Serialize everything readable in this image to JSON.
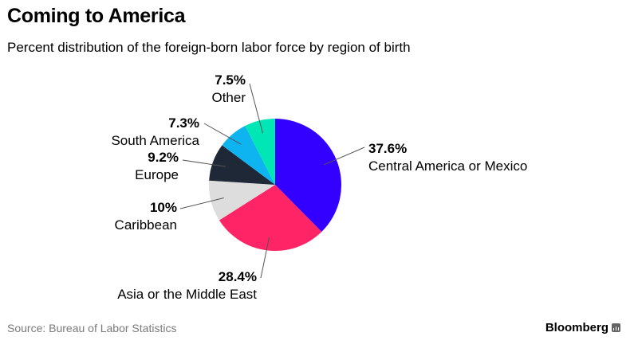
{
  "title": "Coming to America",
  "subtitle": "Percent distribution of the foreign-born labor force by region of birth",
  "source": "Source: Bureau of Labor Statistics",
  "brand": "Bloomberg",
  "brand_icon": "bloomberg-logo-icon",
  "chart_data": {
    "type": "pie",
    "title": "Coming to America",
    "subtitle": "Percent distribution of the foreign-born labor force by region of birth",
    "slices": [
      {
        "label": "Central America or Mexico",
        "value": 37.6,
        "value_label": "37.6%",
        "color": "#3300ff"
      },
      {
        "label": "Asia or the Middle East",
        "value": 28.4,
        "value_label": "28.4%",
        "color": "#ff2466"
      },
      {
        "label": "Caribbean",
        "value": 10.0,
        "value_label": "10%",
        "color": "#dddddd"
      },
      {
        "label": "Europe",
        "value": 9.2,
        "value_label": "9.2%",
        "color": "#1e2836"
      },
      {
        "label": "South America",
        "value": 7.3,
        "value_label": "7.3%",
        "color": "#0db4f0"
      },
      {
        "label": "Other",
        "value": 7.5,
        "value_label": "7.5%",
        "color": "#00e6b4"
      }
    ],
    "start_angle": "12 o'clock",
    "direction": "clockwise"
  }
}
